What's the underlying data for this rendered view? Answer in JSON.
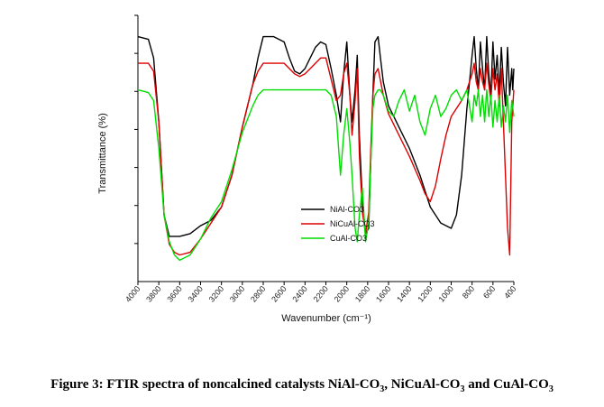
{
  "chart_data": {
    "type": "line",
    "xlabel": "Wavenumber (cm⁻¹)",
    "ylabel": "Transmittance (%)",
    "xlim": [
      4000,
      400
    ],
    "x_reversed": true,
    "xticks": [
      4000,
      3800,
      3600,
      3400,
      3200,
      3000,
      2800,
      2600,
      2400,
      2200,
      2000,
      1800,
      1600,
      1400,
      1200,
      1000,
      800,
      600,
      400
    ],
    "y_ticks_unlabeled": 7,
    "ylim": [
      0,
      100
    ],
    "grid": false,
    "legend_position": "center",
    "series": [
      {
        "name": "NiAl-CO3",
        "color": "#000000",
        "points": [
          [
            4000,
            92
          ],
          [
            3900,
            91
          ],
          [
            3850,
            84
          ],
          [
            3800,
            60
          ],
          [
            3750,
            25
          ],
          [
            3700,
            17
          ],
          [
            3650,
            17
          ],
          [
            3600,
            17
          ],
          [
            3500,
            18
          ],
          [
            3400,
            21
          ],
          [
            3300,
            23
          ],
          [
            3200,
            28
          ],
          [
            3100,
            40
          ],
          [
            3000,
            58
          ],
          [
            2900,
            74
          ],
          [
            2850,
            84
          ],
          [
            2800,
            92
          ],
          [
            2700,
            92
          ],
          [
            2600,
            90
          ],
          [
            2550,
            84
          ],
          [
            2500,
            79
          ],
          [
            2450,
            78
          ],
          [
            2400,
            80
          ],
          [
            2350,
            84
          ],
          [
            2300,
            88
          ],
          [
            2250,
            90
          ],
          [
            2200,
            89
          ],
          [
            2150,
            80
          ],
          [
            2100,
            70
          ],
          [
            2060,
            60
          ],
          [
            2030,
            78
          ],
          [
            2000,
            90
          ],
          [
            1970,
            70
          ],
          [
            1950,
            60
          ],
          [
            1920,
            72
          ],
          [
            1900,
            85
          ],
          [
            1880,
            55
          ],
          [
            1850,
            30
          ],
          [
            1820,
            18
          ],
          [
            1790,
            20
          ],
          [
            1770,
            45
          ],
          [
            1750,
            70
          ],
          [
            1730,
            90
          ],
          [
            1700,
            92
          ],
          [
            1680,
            85
          ],
          [
            1650,
            75
          ],
          [
            1600,
            66
          ],
          [
            1550,
            62
          ],
          [
            1500,
            58
          ],
          [
            1400,
            50
          ],
          [
            1300,
            40
          ],
          [
            1200,
            28
          ],
          [
            1100,
            22
          ],
          [
            1000,
            20
          ],
          [
            950,
            25
          ],
          [
            900,
            40
          ],
          [
            850,
            65
          ],
          [
            800,
            85
          ],
          [
            780,
            92
          ],
          [
            760,
            80
          ],
          [
            740,
            72
          ],
          [
            720,
            90
          ],
          [
            700,
            80
          ],
          [
            680,
            72
          ],
          [
            660,
            92
          ],
          [
            640,
            78
          ],
          [
            620,
            70
          ],
          [
            600,
            90
          ],
          [
            580,
            76
          ],
          [
            560,
            85
          ],
          [
            540,
            70
          ],
          [
            520,
            88
          ],
          [
            500,
            75
          ],
          [
            480,
            66
          ],
          [
            460,
            88
          ],
          [
            440,
            70
          ],
          [
            420,
            80
          ],
          [
            410,
            72
          ],
          [
            400,
            80
          ]
        ]
      },
      {
        "name": "NiCuAl-CO3",
        "color": "#dd0000",
        "points": [
          [
            4000,
            82
          ],
          [
            3900,
            82
          ],
          [
            3850,
            79
          ],
          [
            3800,
            60
          ],
          [
            3750,
            25
          ],
          [
            3700,
            14
          ],
          [
            3650,
            11
          ],
          [
            3600,
            10
          ],
          [
            3500,
            11
          ],
          [
            3400,
            16
          ],
          [
            3300,
            22
          ],
          [
            3200,
            28
          ],
          [
            3100,
            40
          ],
          [
            3000,
            58
          ],
          [
            2900,
            74
          ],
          [
            2850,
            79
          ],
          [
            2800,
            82
          ],
          [
            2700,
            82
          ],
          [
            2600,
            82
          ],
          [
            2550,
            80
          ],
          [
            2500,
            78
          ],
          [
            2450,
            77
          ],
          [
            2400,
            78
          ],
          [
            2350,
            80
          ],
          [
            2300,
            82
          ],
          [
            2250,
            84
          ],
          [
            2200,
            84
          ],
          [
            2150,
            76
          ],
          [
            2100,
            68
          ],
          [
            2060,
            70
          ],
          [
            2030,
            78
          ],
          [
            2000,
            82
          ],
          [
            1970,
            70
          ],
          [
            1950,
            55
          ],
          [
            1920,
            68
          ],
          [
            1900,
            80
          ],
          [
            1880,
            48
          ],
          [
            1850,
            26
          ],
          [
            1820,
            18
          ],
          [
            1790,
            26
          ],
          [
            1770,
            50
          ],
          [
            1750,
            70
          ],
          [
            1730,
            78
          ],
          [
            1700,
            80
          ],
          [
            1680,
            76
          ],
          [
            1650,
            70
          ],
          [
            1600,
            63
          ],
          [
            1500,
            55
          ],
          [
            1400,
            47
          ],
          [
            1300,
            38
          ],
          [
            1250,
            33
          ],
          [
            1200,
            30
          ],
          [
            1150,
            36
          ],
          [
            1100,
            46
          ],
          [
            1050,
            55
          ],
          [
            1000,
            62
          ],
          [
            950,
            65
          ],
          [
            900,
            68
          ],
          [
            850,
            72
          ],
          [
            800,
            78
          ],
          [
            780,
            82
          ],
          [
            760,
            75
          ],
          [
            740,
            72
          ],
          [
            720,
            80
          ],
          [
            700,
            75
          ],
          [
            680,
            72
          ],
          [
            660,
            82
          ],
          [
            640,
            74
          ],
          [
            620,
            68
          ],
          [
            600,
            80
          ],
          [
            580,
            72
          ],
          [
            560,
            78
          ],
          [
            540,
            66
          ],
          [
            520,
            80
          ],
          [
            500,
            60
          ],
          [
            480,
            40
          ],
          [
            460,
            20
          ],
          [
            440,
            10
          ],
          [
            420,
            60
          ],
          [
            400,
            72
          ]
        ]
      },
      {
        "name": "CuAl-CO3",
        "color": "#00dd00",
        "points": [
          [
            4000,
            72
          ],
          [
            3900,
            71
          ],
          [
            3850,
            68
          ],
          [
            3800,
            50
          ],
          [
            3750,
            25
          ],
          [
            3700,
            15
          ],
          [
            3650,
            10
          ],
          [
            3600,
            8
          ],
          [
            3500,
            10
          ],
          [
            3400,
            16
          ],
          [
            3300,
            24
          ],
          [
            3200,
            30
          ],
          [
            3100,
            42
          ],
          [
            3000,
            56
          ],
          [
            2900,
            66
          ],
          [
            2850,
            70
          ],
          [
            2800,
            72
          ],
          [
            2700,
            72
          ],
          [
            2600,
            72
          ],
          [
            2500,
            72
          ],
          [
            2400,
            72
          ],
          [
            2300,
            72
          ],
          [
            2200,
            72
          ],
          [
            2150,
            70
          ],
          [
            2100,
            62
          ],
          [
            2060,
            40
          ],
          [
            2030,
            55
          ],
          [
            2000,
            65
          ],
          [
            1970,
            52
          ],
          [
            1950,
            40
          ],
          [
            1920,
            20
          ],
          [
            1900,
            15
          ],
          [
            1880,
            25
          ],
          [
            1850,
            35
          ],
          [
            1820,
            15
          ],
          [
            1790,
            22
          ],
          [
            1770,
            45
          ],
          [
            1750,
            65
          ],
          [
            1730,
            70
          ],
          [
            1700,
            72
          ],
          [
            1680,
            72
          ],
          [
            1650,
            70
          ],
          [
            1600,
            64
          ],
          [
            1550,
            62
          ],
          [
            1500,
            68
          ],
          [
            1450,
            72
          ],
          [
            1400,
            64
          ],
          [
            1350,
            70
          ],
          [
            1300,
            60
          ],
          [
            1250,
            55
          ],
          [
            1200,
            65
          ],
          [
            1150,
            70
          ],
          [
            1100,
            62
          ],
          [
            1050,
            65
          ],
          [
            1000,
            70
          ],
          [
            950,
            72
          ],
          [
            900,
            68
          ],
          [
            850,
            72
          ],
          [
            800,
            60
          ],
          [
            780,
            70
          ],
          [
            760,
            66
          ],
          [
            740,
            72
          ],
          [
            720,
            62
          ],
          [
            700,
            70
          ],
          [
            680,
            60
          ],
          [
            660,
            72
          ],
          [
            640,
            62
          ],
          [
            620,
            70
          ],
          [
            600,
            58
          ],
          [
            580,
            68
          ],
          [
            560,
            60
          ],
          [
            540,
            70
          ],
          [
            520,
            58
          ],
          [
            500,
            66
          ],
          [
            480,
            60
          ],
          [
            460,
            70
          ],
          [
            440,
            56
          ],
          [
            420,
            68
          ],
          [
            400,
            62
          ]
        ]
      }
    ]
  },
  "caption": {
    "prefix": "Figure 3: FTIR spectra of noncalcined catalysts NiAl-CO",
    "sub1": "3",
    "mid1": ", NiCuAl-CO",
    "sub2": "3",
    "mid2": " and CuAl-CO",
    "sub3": "3"
  }
}
